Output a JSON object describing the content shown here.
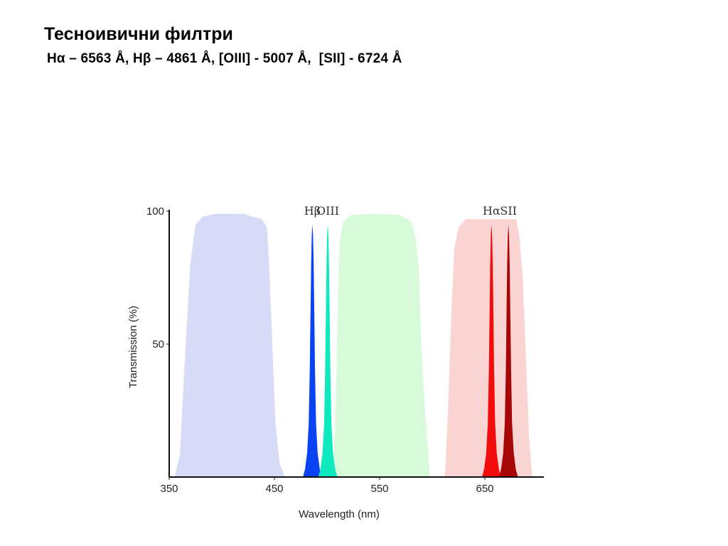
{
  "slide": {
    "title": "Тесноивични филтри",
    "subtitle": "Hα – 6563 Å, Hβ – 4861 Å, [OIII] - 5007 Å,  [SII] - 6724 Å"
  },
  "chart_data": {
    "type": "area",
    "xlabel": "Wavelength (nm)",
    "ylabel": "Transmission (%)",
    "xlim": [
      350,
      705
    ],
    "ylim": [
      0,
      100
    ],
    "x_ticks": [
      350,
      450,
      550,
      650
    ],
    "y_ticks": [
      50,
      100
    ],
    "grid": false,
    "broadband": [
      {
        "name": "blue",
        "color": "#d7dbf7",
        "points": [
          [
            355,
            0
          ],
          [
            360,
            8
          ],
          [
            365,
            45
          ],
          [
            370,
            80
          ],
          [
            375,
            95
          ],
          [
            382,
            98
          ],
          [
            395,
            99
          ],
          [
            420,
            99
          ],
          [
            438,
            97
          ],
          [
            443,
            94
          ],
          [
            445,
            80
          ],
          [
            448,
            50
          ],
          [
            451,
            20
          ],
          [
            455,
            5
          ],
          [
            460,
            0
          ]
        ]
      },
      {
        "name": "green",
        "color": "#d7fbd8",
        "points": [
          [
            505,
            0
          ],
          [
            508,
            20
          ],
          [
            510,
            60
          ],
          [
            512,
            88
          ],
          [
            515,
            96
          ],
          [
            522,
            98.5
          ],
          [
            545,
            99
          ],
          [
            570,
            98.5
          ],
          [
            580,
            96
          ],
          [
            584,
            90
          ],
          [
            587,
            80
          ],
          [
            590,
            45
          ],
          [
            594,
            20
          ],
          [
            598,
            0
          ]
        ]
      },
      {
        "name": "red",
        "color": "#fad4d2",
        "points": [
          [
            612,
            0
          ],
          [
            615,
            25
          ],
          [
            618,
            60
          ],
          [
            621,
            86
          ],
          [
            625,
            94
          ],
          [
            632,
            97
          ],
          [
            680,
            97
          ],
          [
            683,
            90
          ],
          [
            686,
            75
          ],
          [
            689,
            45
          ],
          [
            692,
            15
          ],
          [
            695,
            0
          ]
        ]
      }
    ],
    "narrowband": [
      {
        "label": "Hβ",
        "center": 486.1,
        "peak": 95,
        "color": "#0a44f2"
      },
      {
        "label": "OIII",
        "center": 500.7,
        "peak": 95,
        "color": "#0fe9c0"
      },
      {
        "label": "Hα",
        "center": 656.3,
        "peak": 95,
        "color": "#f20c0c"
      },
      {
        "label": "SII",
        "center": 672.4,
        "peak": 95,
        "color": "#a60606"
      }
    ]
  }
}
